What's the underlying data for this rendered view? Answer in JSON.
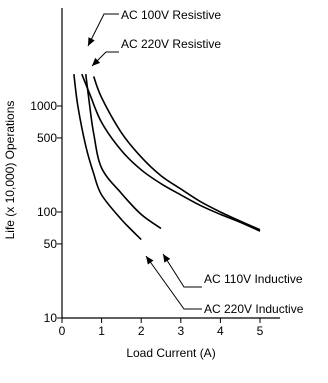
{
  "chart_data": {
    "type": "line",
    "title": "",
    "xlabel": "Load Current (A)",
    "ylabel": "Life (x 10,000) Operations",
    "xlim": [
      0,
      5.5
    ],
    "ylim": [
      10,
      2500
    ],
    "yscale": "log",
    "xticks": [
      0,
      1,
      2,
      3,
      4,
      5
    ],
    "yticks": [
      10,
      50,
      100,
      500,
      1000
    ],
    "grid": false,
    "series": [
      {
        "name": "AC 100V Resistive",
        "x": [
          0.5,
          0.7,
          1.0,
          1.5,
          2.0,
          2.5,
          3.0,
          3.5,
          4.0,
          4.5,
          5.0
        ],
        "y": [
          2000,
          1300,
          700,
          380,
          250,
          185,
          145,
          115,
          95,
          80,
          66
        ]
      },
      {
        "name": "AC 220V Resistive",
        "x": [
          0.8,
          1.0,
          1.5,
          2.0,
          2.5,
          3.0,
          3.5,
          4.0,
          4.5,
          5.0
        ],
        "y": [
          1900,
          1200,
          560,
          330,
          220,
          165,
          125,
          100,
          82,
          68
        ]
      },
      {
        "name": "AC 110V Inductive",
        "x": [
          0.6,
          0.7,
          0.8,
          1.0,
          1.5,
          2.0,
          2.5
        ],
        "y": [
          2000,
          1000,
          550,
          260,
          150,
          95,
          70
        ]
      },
      {
        "name": "AC 220V Inductive",
        "x": [
          0.3,
          0.4,
          0.6,
          0.8,
          1.0,
          1.5,
          2.0
        ],
        "y": [
          2000,
          1000,
          420,
          230,
          145,
          85,
          55
        ]
      }
    ]
  }
}
